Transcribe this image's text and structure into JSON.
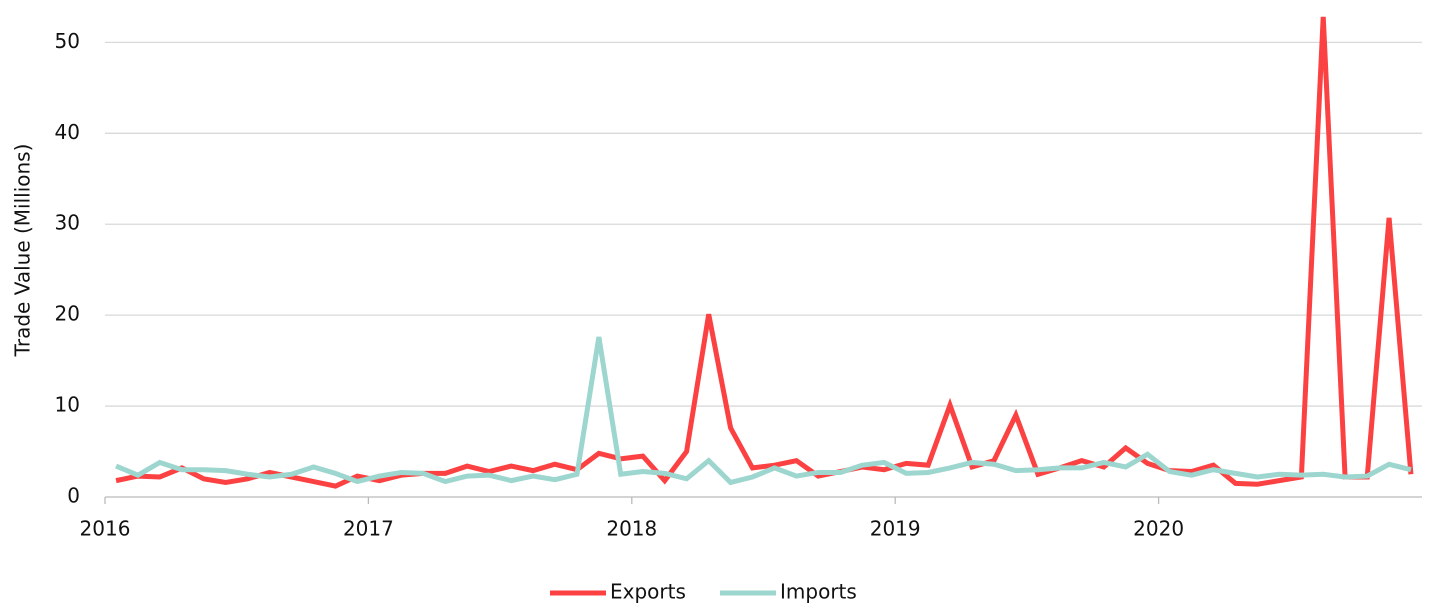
{
  "chart_data": {
    "type": "line",
    "y_label": "Trade Value (Millions)",
    "x": [
      2016.042,
      2016.125,
      2016.208,
      2016.292,
      2016.375,
      2016.458,
      2016.542,
      2016.625,
      2016.708,
      2016.792,
      2016.875,
      2016.958,
      2017.042,
      2017.125,
      2017.208,
      2017.292,
      2017.375,
      2017.458,
      2017.542,
      2017.625,
      2017.708,
      2017.792,
      2017.875,
      2017.958,
      2018.042,
      2018.125,
      2018.208,
      2018.292,
      2018.375,
      2018.458,
      2018.542,
      2018.625,
      2018.708,
      2018.792,
      2018.875,
      2018.958,
      2019.042,
      2019.125,
      2019.208,
      2019.292,
      2019.375,
      2019.458,
      2019.542,
      2019.625,
      2019.708,
      2019.792,
      2019.875,
      2019.958,
      2020.042,
      2020.125,
      2020.208,
      2020.292,
      2020.375,
      2020.458,
      2020.542,
      2020.625,
      2020.708,
      2020.792,
      2020.875,
      2020.958
    ],
    "series": [
      {
        "name": "Exports",
        "color": "#fb4141",
        "values": [
          1.8,
          2.3,
          2.2,
          3.2,
          2.0,
          1.6,
          2.0,
          2.7,
          2.2,
          1.7,
          1.2,
          2.3,
          1.8,
          2.4,
          2.6,
          2.6,
          3.4,
          2.8,
          3.4,
          2.9,
          3.6,
          3.0,
          4.8,
          4.2,
          4.5,
          1.8,
          5.0,
          20.1,
          7.6,
          3.2,
          3.5,
          4.0,
          2.3,
          2.8,
          3.3,
          3.0,
          3.7,
          3.5,
          10.1,
          3.3,
          4.0,
          9.0,
          2.5,
          3.2,
          4.0,
          3.3,
          5.4,
          3.7,
          2.9,
          2.8,
          3.5,
          1.5,
          1.4,
          1.8,
          2.2,
          52.8,
          2.2,
          2.2,
          30.7,
          2.5
        ]
      },
      {
        "name": "Imports",
        "color": "#9dd6cf",
        "values": [
          3.4,
          2.4,
          3.8,
          3.0,
          3.0,
          2.9,
          2.5,
          2.2,
          2.5,
          3.3,
          2.6,
          1.7,
          2.3,
          2.7,
          2.6,
          1.7,
          2.3,
          2.4,
          1.8,
          2.3,
          1.9,
          2.5,
          17.6,
          2.5,
          2.8,
          2.6,
          2.0,
          4.0,
          1.6,
          2.2,
          3.2,
          2.3,
          2.7,
          2.7,
          3.5,
          3.8,
          2.6,
          2.7,
          3.2,
          3.8,
          3.6,
          2.9,
          3.0,
          3.2,
          3.2,
          3.8,
          3.3,
          4.7,
          2.8,
          2.4,
          3.0,
          2.6,
          2.2,
          2.5,
          2.4,
          2.5,
          2.2,
          2.3,
          3.6,
          3.0
        ]
      }
    ],
    "xlim": [
      2016,
      2021
    ],
    "xticks": [
      2016,
      2017,
      2018,
      2019,
      2020
    ],
    "ylim": [
      0,
      54
    ],
    "yticks": [
      0,
      10,
      20,
      30,
      40,
      50
    ],
    "grid": true,
    "legend": "bottom"
  }
}
